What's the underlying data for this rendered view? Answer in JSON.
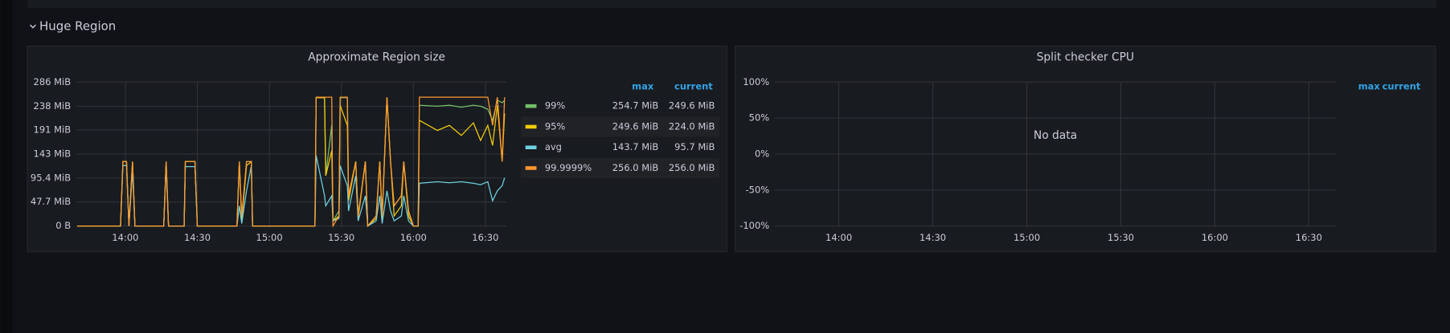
{
  "section": {
    "title": "Huge Region"
  },
  "panels": [
    {
      "type": "line",
      "title": "Approximate Region size",
      "x": [
        820,
        838,
        839,
        840.5,
        841.5,
        843,
        844,
        856,
        857,
        858,
        864.5,
        865,
        869,
        870,
        886.5,
        887.5,
        888.5,
        890.5,
        892.5,
        893,
        919,
        919.5,
        923,
        923.5,
        926,
        926.5,
        929,
        929.5,
        932.5,
        933,
        936,
        937,
        940,
        941,
        944.5,
        946,
        947,
        949,
        950.5,
        952,
        955,
        956,
        958,
        960,
        962,
        962.5,
        970,
        975,
        980,
        985,
        988,
        991,
        993,
        995,
        997,
        998
      ],
      "xlim": [
        819.6,
        998.6
      ],
      "xticks": [
        {
          "value": 840,
          "label": "14:00"
        },
        {
          "value": 870,
          "label": "14:30"
        },
        {
          "value": 900,
          "label": "15:00"
        },
        {
          "value": 930,
          "label": "15:30"
        },
        {
          "value": 960,
          "label": "16:00"
        },
        {
          "value": 990,
          "label": "16:30"
        }
      ],
      "ylim": [
        0,
        286
      ],
      "yticks": [
        {
          "value": 0,
          "label": "0 B"
        },
        {
          "value": 47.7,
          "label": "47.7 MiB"
        },
        {
          "value": 95.4,
          "label": "95.4 MiB"
        },
        {
          "value": 143,
          "label": "143 MiB"
        },
        {
          "value": 191,
          "label": "191 MiB"
        },
        {
          "value": 238,
          "label": "238 MiB"
        },
        {
          "value": 286,
          "label": "286 MiB"
        }
      ],
      "grid": true,
      "legend": {
        "columns": [
          "max",
          "current"
        ]
      },
      "series": [
        {
          "name": "99%",
          "color": "#73bf69",
          "max": "254.7 MiB",
          "current": "249.6 MiB",
          "values": [
            0,
            0,
            128,
            128,
            0,
            128,
            0,
            0,
            128,
            0,
            0,
            128,
            128,
            0,
            0,
            128,
            10,
            128,
            128,
            0,
            0,
            255,
            255,
            100,
            200,
            10,
            30,
            255,
            255,
            60,
            128,
            20,
            128,
            0,
            20,
            128,
            20,
            255,
            128,
            40,
            60,
            128,
            30,
            0,
            0,
            240,
            238,
            240,
            236,
            240,
            238,
            232,
            210,
            250,
            245,
            249.6
          ]
        },
        {
          "name": "95%",
          "color": "#f2cc0c",
          "max": "249.6 MiB",
          "current": "224.0 MiB",
          "values": [
            0,
            0,
            128,
            128,
            0,
            128,
            0,
            0,
            128,
            0,
            0,
            128,
            128,
            0,
            0,
            128,
            10,
            120,
            128,
            0,
            0,
            255,
            255,
            100,
            150,
            10,
            20,
            240,
            200,
            50,
            128,
            15,
            128,
            0,
            15,
            128,
            15,
            255,
            128,
            20,
            40,
            128,
            20,
            0,
            0,
            210,
            190,
            200,
            180,
            205,
            170,
            200,
            160,
            240,
            128,
            224
          ]
        },
        {
          "name": "avg",
          "color": "#6ed0e0",
          "max": "143.7 MiB",
          "current": "95.7 MiB",
          "values": [
            0,
            0,
            120,
            120,
            0,
            110,
            0,
            0,
            120,
            0,
            0,
            118,
            118,
            0,
            0,
            40,
            5,
            70,
            120,
            0,
            0,
            140,
            60,
            40,
            60,
            10,
            15,
            120,
            80,
            30,
            100,
            10,
            60,
            0,
            10,
            60,
            5,
            70,
            30,
            10,
            20,
            60,
            10,
            0,
            0,
            85,
            88,
            86,
            88,
            85,
            82,
            88,
            50,
            70,
            80,
            95.7
          ]
        },
        {
          "name": "99.9999%",
          "color": "#ff9830",
          "max": "256.0 MiB",
          "current": "256.0 MiB",
          "values": [
            0,
            0,
            128,
            128,
            0,
            128,
            0,
            0,
            128,
            0,
            0,
            128,
            128,
            0,
            0,
            128,
            20,
            128,
            128,
            0,
            0,
            256,
            256,
            256,
            256,
            0,
            20,
            256,
            256,
            60,
            128,
            20,
            128,
            0,
            20,
            128,
            20,
            256,
            128,
            40,
            60,
            128,
            30,
            0,
            0,
            256,
            256,
            256,
            256,
            256,
            256,
            256,
            200,
            256,
            128,
            256
          ]
        }
      ]
    },
    {
      "type": "line",
      "title": "Split checker CPU",
      "no_data": "No data",
      "xlim": [
        819.6,
        998.6
      ],
      "xticks": [
        {
          "value": 840,
          "label": "14:00"
        },
        {
          "value": 870,
          "label": "14:30"
        },
        {
          "value": 900,
          "label": "15:00"
        },
        {
          "value": 930,
          "label": "15:30"
        },
        {
          "value": 960,
          "label": "16:00"
        },
        {
          "value": 990,
          "label": "16:30"
        }
      ],
      "ylim": [
        -100,
        100
      ],
      "yticks": [
        {
          "value": -100,
          "label": "-100%"
        },
        {
          "value": -50,
          "label": "-50%"
        },
        {
          "value": 0,
          "label": "0%"
        },
        {
          "value": 50,
          "label": "50%"
        },
        {
          "value": 100,
          "label": "100%"
        }
      ],
      "grid": true,
      "legend": {
        "columns": [
          "max",
          "current"
        ]
      },
      "series": []
    }
  ]
}
